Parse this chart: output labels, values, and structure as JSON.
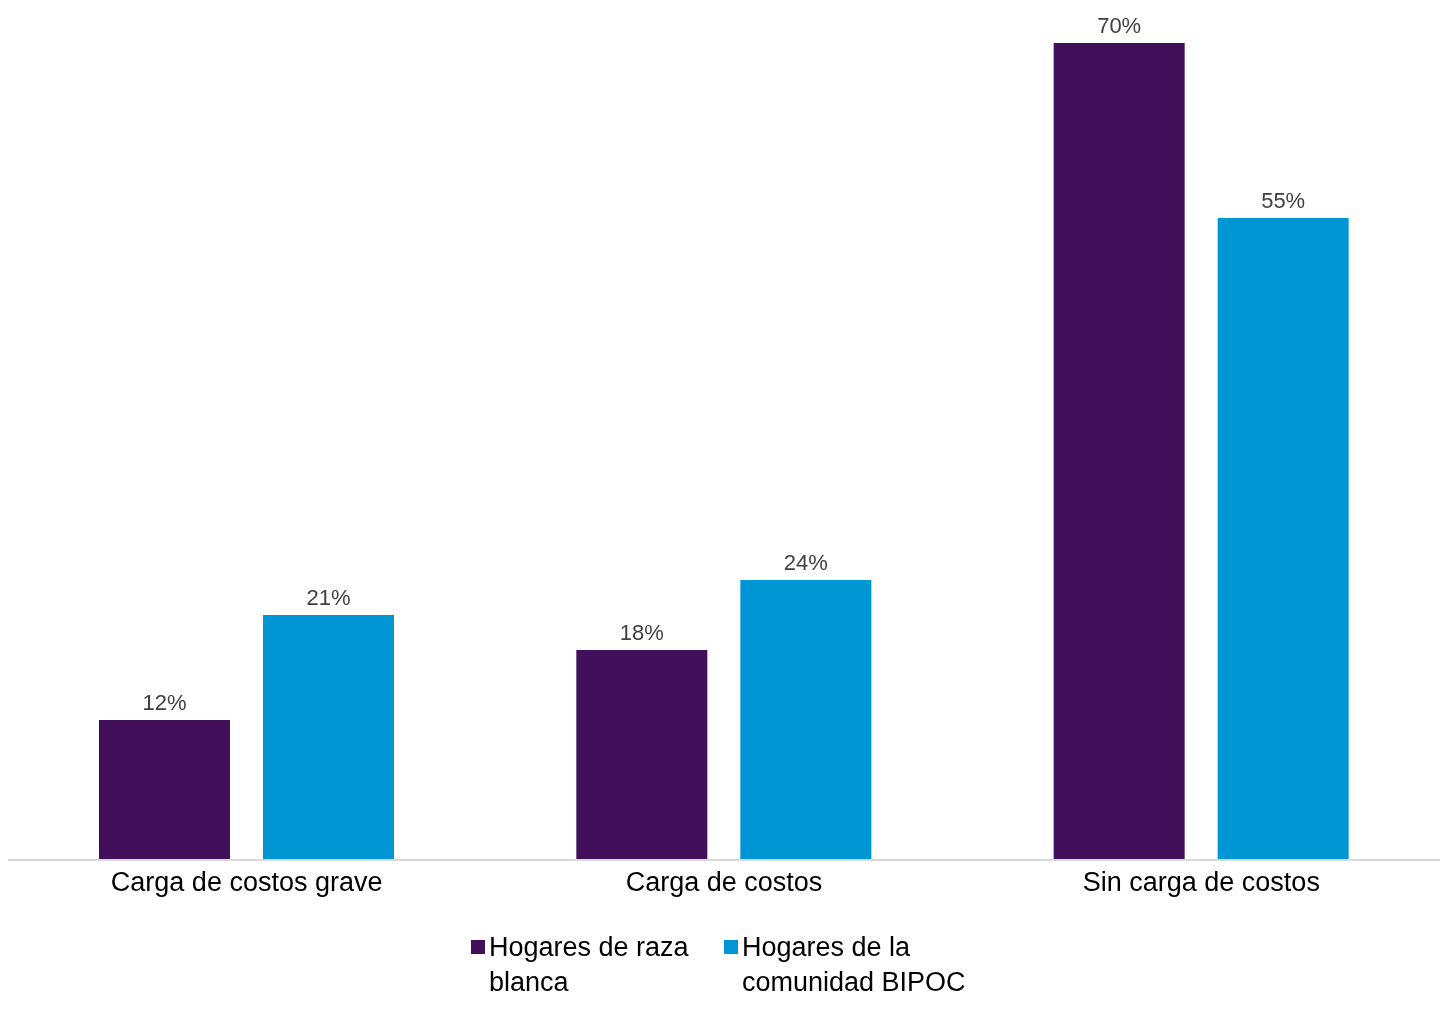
{
  "chart_data": {
    "type": "bar",
    "categories": [
      "Carga de costos grave",
      "Carga de costos",
      "Sin carga de costos"
    ],
    "series": [
      {
        "name": "Hogares de raza blanca",
        "color": "#42105a",
        "values": [
          12,
          18,
          70
        ],
        "value_labels": [
          "12%",
          "18%",
          "70%"
        ]
      },
      {
        "name": "Hogares de la comunidad BIPOC",
        "color": "#0096d6",
        "values": [
          21,
          24,
          55
        ],
        "value_labels": [
          "21%",
          "24%",
          "55%"
        ]
      }
    ],
    "legend": "bottom"
  }
}
